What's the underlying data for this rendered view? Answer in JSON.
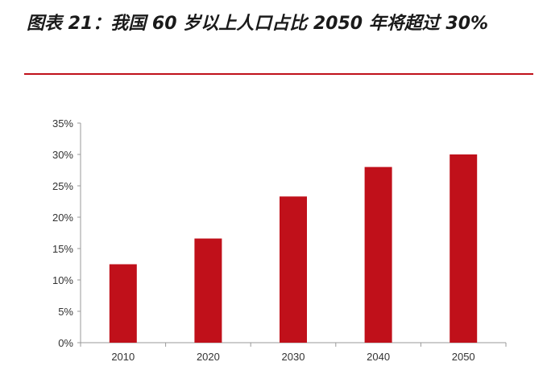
{
  "title": "图表 21：我国 60 岁以上人口占比 2050 年将超过 30%",
  "colors": {
    "accent": "#c0101a",
    "bar": "#c0101a",
    "axis": "#999999"
  },
  "chart_data": {
    "type": "bar",
    "categories": [
      "2010",
      "2020",
      "2030",
      "2040",
      "2050"
    ],
    "values": [
      12.5,
      16.6,
      23.3,
      28.0,
      30.0
    ],
    "y_ticks": [
      "0%",
      "5%",
      "10%",
      "15%",
      "20%",
      "25%",
      "30%",
      "35%"
    ],
    "ylim": [
      0,
      35
    ],
    "title": "",
    "xlabel": "",
    "ylabel": "",
    "grid": false,
    "legend": "none"
  }
}
